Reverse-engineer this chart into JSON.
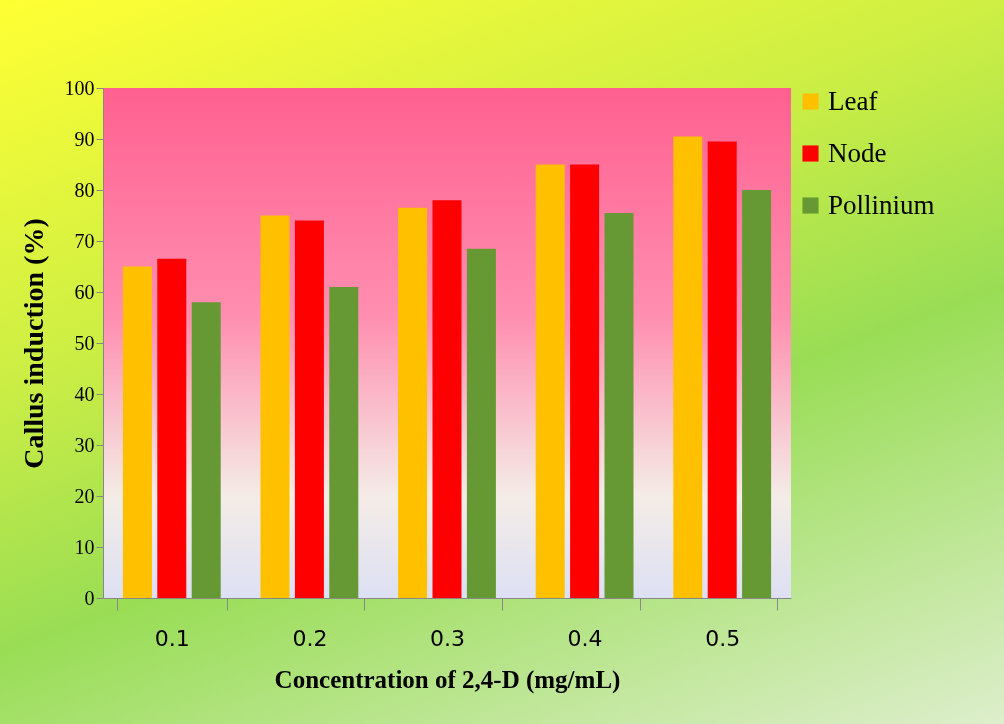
{
  "chart_data": {
    "type": "bar",
    "xlabel": "Concentration of 2,4-D (mg/mL)",
    "ylabel": "Callus induction (%)",
    "categories": [
      "0.1",
      "0.2",
      "0.3",
      "0.4",
      "0.5"
    ],
    "series": [
      {
        "name": "Leaf",
        "color": "#ffc000",
        "values": [
          65,
          75,
          76.5,
          85,
          90.5
        ]
      },
      {
        "name": "Node",
        "color": "#ff0000",
        "values": [
          66.5,
          74,
          78,
          85,
          89.5
        ]
      },
      {
        "name": "Pollinium",
        "color": "#669933",
        "values": [
          58,
          61,
          68.5,
          75.5,
          80
        ]
      }
    ],
    "ylim": [
      0,
      100
    ],
    "yticks": [
      0,
      10,
      20,
      30,
      40,
      50,
      60,
      70,
      80,
      90,
      100
    ],
    "grid": false,
    "legend": "right"
  }
}
